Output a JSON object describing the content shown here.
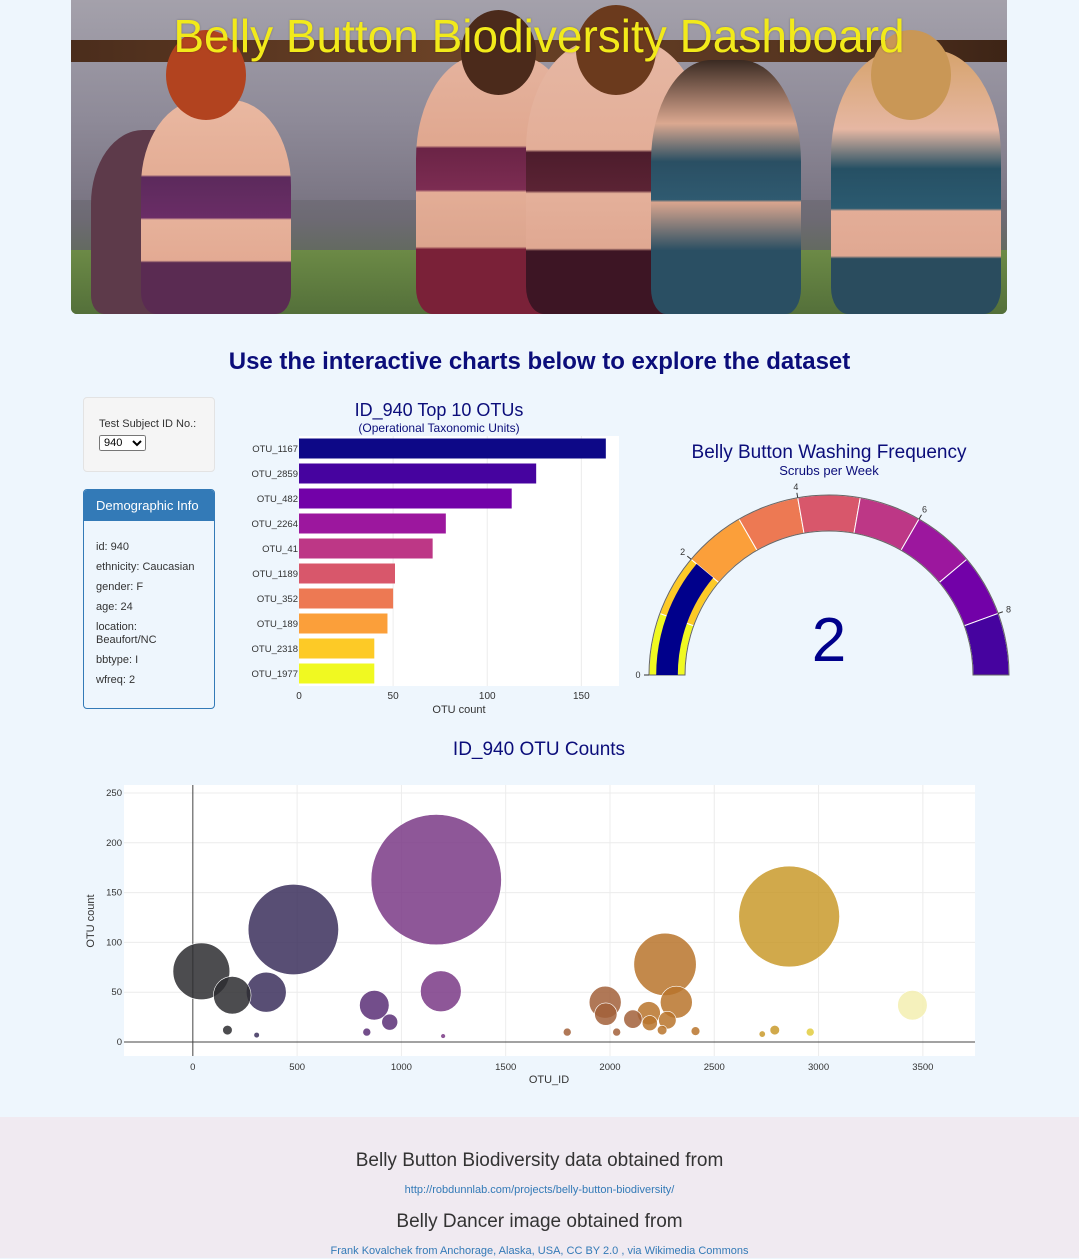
{
  "header": {
    "title": "Belly Button Biodiversity Dashboard"
  },
  "subtitle": "Use the interactive charts below to explore the dataset",
  "selector": {
    "label": "Test Subject ID No.:",
    "selected": "940"
  },
  "demographics": {
    "title": "Demographic Info",
    "rows": [
      "id: 940",
      "ethnicity: Caucasian",
      "gender: F",
      "age: 24",
      "location: Beaufort/NC",
      "bbtype: I",
      "wfreq: 2"
    ]
  },
  "colors": {
    "accent": "#337ab7",
    "title_navy": "#0b0d7a",
    "hero_title": "#f2ea1a",
    "page_bg": "#eef6fd",
    "footer_bg": "#f0eaf1"
  },
  "chart_data": [
    {
      "type": "bar",
      "orientation": "horizontal",
      "title": "ID_940 Top 10 OTUs",
      "subtitle": "(Operational Taxonomic Units)",
      "xlabel": "OTU count",
      "ylabel": "",
      "xlim": [
        0,
        170
      ],
      "xticks": [
        0,
        50,
        100,
        150
      ],
      "categories": [
        "OTU_1167",
        "OTU_2859",
        "OTU_482",
        "OTU_2264",
        "OTU_41",
        "OTU_1189",
        "OTU_352",
        "OTU_189",
        "OTU_2318",
        "OTU_1977"
      ],
      "values": [
        163,
        126,
        113,
        78,
        71,
        51,
        50,
        47,
        40,
        40
      ],
      "colors": [
        "#0d0887",
        "#46039f",
        "#7201a8",
        "#9c179e",
        "#bd3786",
        "#d8576b",
        "#ed7953",
        "#fb9f3a",
        "#fdca26",
        "#f0f921"
      ]
    },
    {
      "type": "gauge",
      "title": "Belly Button Washing Frequency",
      "subtitle": "Scrubs per Week",
      "value": 2,
      "range": [
        0,
        9
      ],
      "ticks": [
        0,
        2,
        4,
        6,
        8
      ],
      "steps": [
        {
          "range": [
            0,
            1
          ],
          "color": "#f0f921"
        },
        {
          "range": [
            1,
            2
          ],
          "color": "#fdca26"
        },
        {
          "range": [
            2,
            3
          ],
          "color": "#fb9f3a"
        },
        {
          "range": [
            3,
            4
          ],
          "color": "#ed7953"
        },
        {
          "range": [
            4,
            5
          ],
          "color": "#d8576b"
        },
        {
          "range": [
            5,
            6
          ],
          "color": "#bd3786"
        },
        {
          "range": [
            6,
            7
          ],
          "color": "#9c179e"
        },
        {
          "range": [
            7,
            8
          ],
          "color": "#7201a8"
        },
        {
          "range": [
            8,
            9
          ],
          "color": "#46039f"
        }
      ],
      "bar_color": "#00008b"
    },
    {
      "type": "scatter",
      "title": "ID_940 OTU Counts",
      "xlabel": "OTU_ID",
      "ylabel": "OTU count",
      "xlim": [
        -330,
        3750
      ],
      "ylim": [
        -14,
        258
      ],
      "xticks": [
        0,
        500,
        1000,
        1500,
        2000,
        2500,
        3000,
        3500
      ],
      "yticks": [
        0,
        50,
        100,
        150,
        200,
        250
      ],
      "grid": true,
      "points": [
        {
          "x": 41,
          "y": 71
        },
        {
          "x": 189,
          "y": 47
        },
        {
          "x": 352,
          "y": 50
        },
        {
          "x": 482,
          "y": 113
        },
        {
          "x": 1167,
          "y": 163
        },
        {
          "x": 1189,
          "y": 51
        },
        {
          "x": 870,
          "y": 37
        },
        {
          "x": 944,
          "y": 20
        },
        {
          "x": 166,
          "y": 12
        },
        {
          "x": 306,
          "y": 7
        },
        {
          "x": 834,
          "y": 10
        },
        {
          "x": 1200,
          "y": 6
        },
        {
          "x": 1795,
          "y": 10
        },
        {
          "x": 1977,
          "y": 40
        },
        {
          "x": 1980,
          "y": 28
        },
        {
          "x": 2032,
          "y": 10
        },
        {
          "x": 2110,
          "y": 23
        },
        {
          "x": 2186,
          "y": 29
        },
        {
          "x": 2191,
          "y": 19
        },
        {
          "x": 2264,
          "y": 78
        },
        {
          "x": 2275,
          "y": 22
        },
        {
          "x": 2318,
          "y": 40
        },
        {
          "x": 2250,
          "y": 12
        },
        {
          "x": 2410,
          "y": 11
        },
        {
          "x": 2859,
          "y": 126
        },
        {
          "x": 2730,
          "y": 8
        },
        {
          "x": 2790,
          "y": 12
        },
        {
          "x": 2960,
          "y": 10
        },
        {
          "x": 3450,
          "y": 37
        }
      ]
    }
  ],
  "footer": {
    "data_credit": "Belly Button Biodiversity data obtained from",
    "data_link": "http://robdunnlab.com/projects/belly-button-biodiversity/",
    "image_credit": "Belly Dancer image obtained from",
    "image_link": "Frank Kovalchek from Anchorage, Alaska, USA, CC BY 2.0 , via Wikimedia Commons"
  }
}
